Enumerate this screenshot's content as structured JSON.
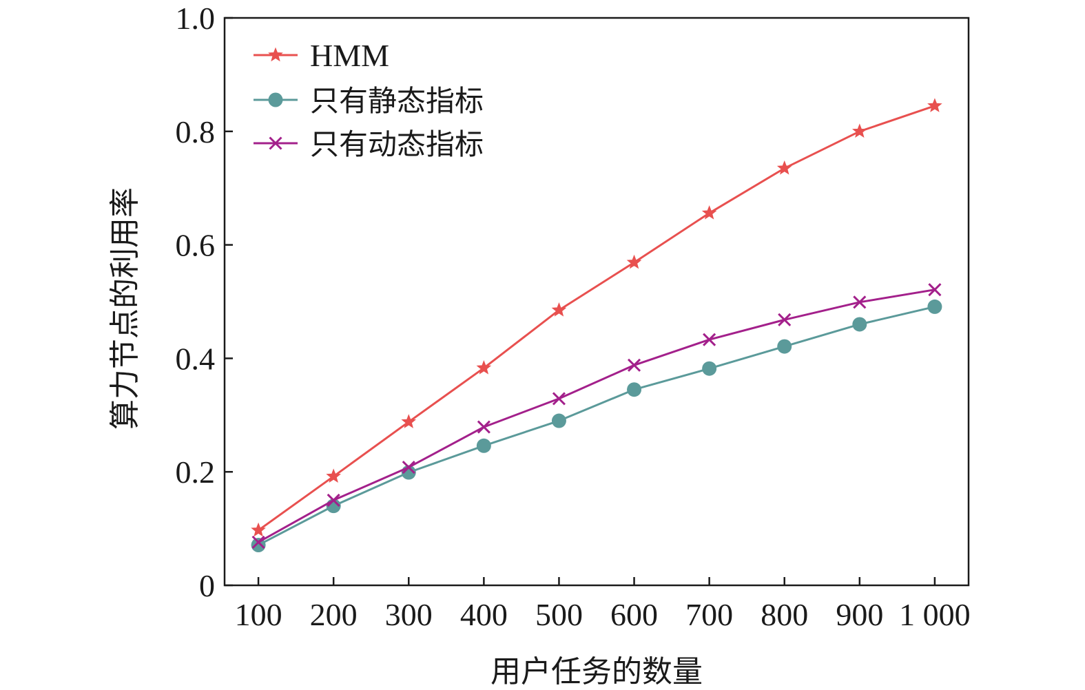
{
  "chart_data": {
    "type": "line",
    "title": "",
    "xlabel": "用户任务的数量",
    "ylabel": "算力节点的利用率",
    "x": [
      100,
      200,
      300,
      400,
      500,
      600,
      700,
      800,
      900,
      1000
    ],
    "x_tick_labels": [
      "100",
      "200",
      "300",
      "400",
      "500",
      "600",
      "700",
      "800",
      "900",
      "1 000"
    ],
    "y_ticks": [
      0,
      0.2,
      0.4,
      0.6,
      0.8,
      1.0
    ],
    "y_tick_labels": [
      "0",
      "0.2",
      "0.4",
      "0.6",
      "0.8",
      "1.0"
    ],
    "xlim": [
      55,
      1045
    ],
    "ylim": [
      0,
      1.0
    ],
    "grid": false,
    "legend_position": "top-left",
    "series": [
      {
        "name": "HMM",
        "color": "#e8504f",
        "marker": "star",
        "values": [
          0.097,
          0.192,
          0.288,
          0.383,
          0.485,
          0.569,
          0.656,
          0.735,
          0.8,
          0.845
        ]
      },
      {
        "name": "只有静态指标",
        "color": "#5b9a9a",
        "marker": "circle",
        "values": [
          0.071,
          0.14,
          0.199,
          0.246,
          0.29,
          0.345,
          0.382,
          0.421,
          0.46,
          0.491
        ]
      },
      {
        "name": "只有动态指标",
        "color": "#a3208b",
        "marker": "x",
        "values": [
          0.076,
          0.15,
          0.208,
          0.279,
          0.329,
          0.388,
          0.433,
          0.468,
          0.499,
          0.521
        ]
      }
    ]
  }
}
